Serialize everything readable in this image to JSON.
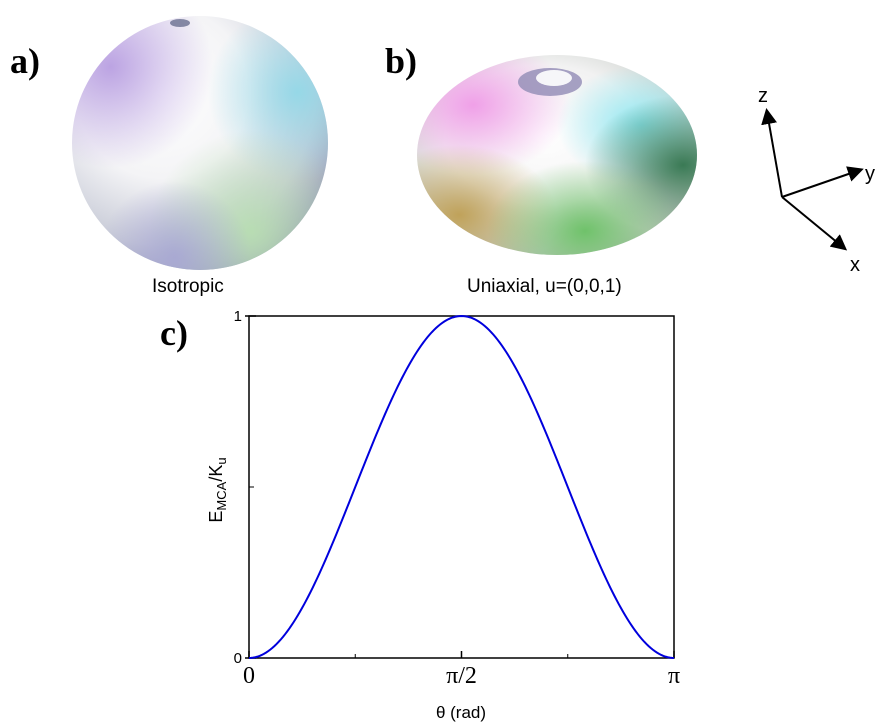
{
  "panels": {
    "a": {
      "letter": "a)",
      "caption": "Isotropic"
    },
    "b": {
      "letter": "b)",
      "caption": "Uniaxial, u=(0,0,1)"
    },
    "c": {
      "letter": "c)"
    }
  },
  "axes_glyph": {
    "z": "z",
    "y": "y",
    "x": "x"
  },
  "colors": {
    "curve": "#0000dd",
    "axis": "#000000"
  },
  "chart_data": {
    "type": "line",
    "function": "sin^2(theta)",
    "x": [
      0,
      0.19635,
      0.3927,
      0.58905,
      0.7854,
      0.98175,
      1.1781,
      1.37445,
      1.5708,
      1.76715,
      1.9635,
      2.15985,
      2.3562,
      2.55255,
      2.7489,
      2.94525,
      3.14159
    ],
    "y": [
      0,
      0.0381,
      0.1464,
      0.3087,
      0.5,
      0.6913,
      0.8536,
      0.9619,
      1,
      0.9619,
      0.8536,
      0.6913,
      0.5,
      0.3087,
      0.1464,
      0.0381,
      0
    ],
    "xlim": [
      0,
      3.14159
    ],
    "ylim": [
      0,
      1
    ],
    "xticks": [
      {
        "value": 0,
        "label": "0"
      },
      {
        "value": 1.5708,
        "label": "π/2"
      },
      {
        "value": 3.14159,
        "label": "π"
      }
    ],
    "yticks": [
      {
        "value": 0,
        "label": "0"
      },
      {
        "value": 1,
        "label": "1"
      }
    ],
    "xlabel": "θ (rad)",
    "ylabel_main": "E",
    "ylabel_sub1": "MCA",
    "ylabel_mid": "/K",
    "ylabel_sub2": "u",
    "grid": false
  }
}
